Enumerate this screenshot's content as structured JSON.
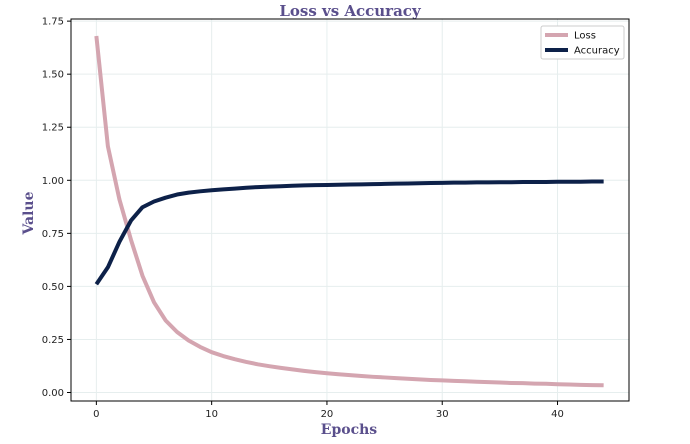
{
  "chart_data": {
    "type": "line",
    "title": "Loss vs Accuracy",
    "xlabel": "Epochs",
    "ylabel": "Value",
    "xlim": [
      -2.2,
      46.2
    ],
    "ylim": [
      -0.04,
      1.76
    ],
    "xticks": [
      0,
      10,
      20,
      30,
      40
    ],
    "yticks": [
      0.0,
      0.25,
      0.5,
      0.75,
      1.0,
      1.25,
      1.5,
      1.75
    ],
    "grid": true,
    "legend_position": "top-right",
    "series": [
      {
        "name": "Loss",
        "color": "#d4a5b0",
        "x": [
          0,
          1,
          2,
          3,
          4,
          5,
          6,
          7,
          8,
          9,
          10,
          11,
          12,
          13,
          14,
          15,
          16,
          17,
          18,
          19,
          20,
          21,
          22,
          23,
          24,
          25,
          26,
          27,
          28,
          29,
          30,
          31,
          32,
          33,
          34,
          35,
          36,
          37,
          38,
          39,
          40,
          41,
          42,
          43,
          44
        ],
        "values": [
          1.68,
          1.16,
          0.91,
          0.72,
          0.55,
          0.425,
          0.34,
          0.285,
          0.245,
          0.215,
          0.19,
          0.172,
          0.157,
          0.144,
          0.133,
          0.124,
          0.116,
          0.109,
          0.102,
          0.096,
          0.091,
          0.086,
          0.082,
          0.078,
          0.074,
          0.071,
          0.068,
          0.065,
          0.062,
          0.059,
          0.057,
          0.055,
          0.053,
          0.051,
          0.049,
          0.047,
          0.045,
          0.044,
          0.042,
          0.041,
          0.039,
          0.038,
          0.036,
          0.035,
          0.034
        ]
      },
      {
        "name": "Accuracy",
        "color": "#0d2149",
        "x": [
          0,
          1,
          2,
          3,
          4,
          5,
          6,
          7,
          8,
          9,
          10,
          11,
          12,
          13,
          14,
          15,
          16,
          17,
          18,
          19,
          20,
          21,
          22,
          23,
          24,
          25,
          26,
          27,
          28,
          29,
          30,
          31,
          32,
          33,
          34,
          35,
          36,
          37,
          38,
          39,
          40,
          41,
          42,
          43,
          44
        ],
        "values": [
          0.51,
          0.59,
          0.71,
          0.81,
          0.873,
          0.9,
          0.918,
          0.933,
          0.942,
          0.948,
          0.953,
          0.957,
          0.961,
          0.965,
          0.968,
          0.97,
          0.972,
          0.974,
          0.976,
          0.977,
          0.978,
          0.979,
          0.98,
          0.981,
          0.982,
          0.983,
          0.984,
          0.985,
          0.986,
          0.987,
          0.988,
          0.989,
          0.989,
          0.99,
          0.99,
          0.991,
          0.991,
          0.992,
          0.992,
          0.992,
          0.993,
          0.993,
          0.993,
          0.994,
          0.994
        ]
      }
    ]
  }
}
